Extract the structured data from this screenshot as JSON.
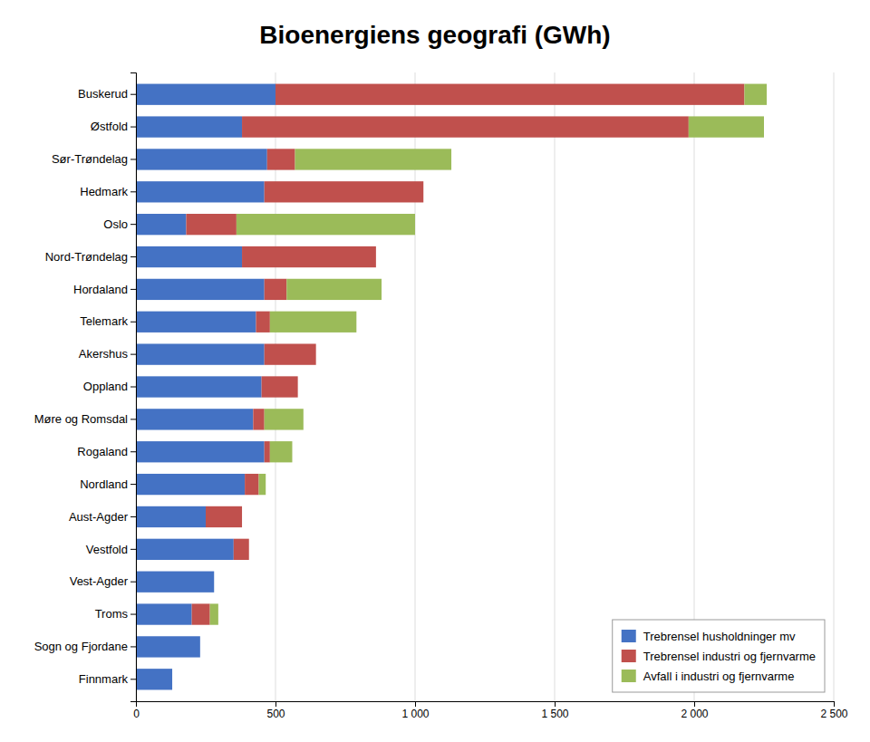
{
  "chart_data": {
    "type": "bar",
    "orientation": "horizontal",
    "stacked": true,
    "title": "Bioenergiens geografi (GWh)",
    "categories": [
      "Buskerud",
      "Østfold",
      "Sør-Trøndelag",
      "Hedmark",
      "Oslo",
      "Nord-Trøndelag",
      "Hordaland",
      "Telemark",
      "Akershus",
      "Oppland",
      "Møre og Romsdal",
      "Rogaland",
      "Nordland",
      "Aust-Agder",
      "Vestfold",
      "Vest-Agder",
      "Troms",
      "Sogn og Fjordane",
      "Finnmark"
    ],
    "series": [
      {
        "name": "Trebrensel husholdninger mv",
        "color": "#4472C4",
        "values": [
          500,
          380,
          470,
          460,
          180,
          380,
          460,
          430,
          460,
          450,
          420,
          460,
          390,
          250,
          350,
          280,
          200,
          230,
          130
        ]
      },
      {
        "name": "Trebrensel industri og fjernvarme",
        "color": "#C0504D",
        "values": [
          1680,
          1600,
          100,
          570,
          180,
          480,
          80,
          50,
          185,
          130,
          40,
          20,
          50,
          130,
          55,
          0,
          65,
          0,
          0
        ]
      },
      {
        "name": "Avfall i industri og fjernvarme",
        "color": "#9BBB59",
        "values": [
          80,
          270,
          560,
          0,
          640,
          0,
          340,
          310,
          0,
          0,
          140,
          80,
          25,
          0,
          0,
          0,
          30,
          0,
          0
        ]
      }
    ],
    "xlim": [
      0,
      2500
    ],
    "xticks": [
      0,
      500,
      {
        "value": 1000,
        "label": "1 000"
      },
      {
        "value": 1500,
        "label": "1 500"
      },
      {
        "value": 2000,
        "label": "2 000"
      },
      {
        "value": 2500,
        "label": "2 500"
      }
    ],
    "grid": true,
    "legend": "lower right"
  }
}
